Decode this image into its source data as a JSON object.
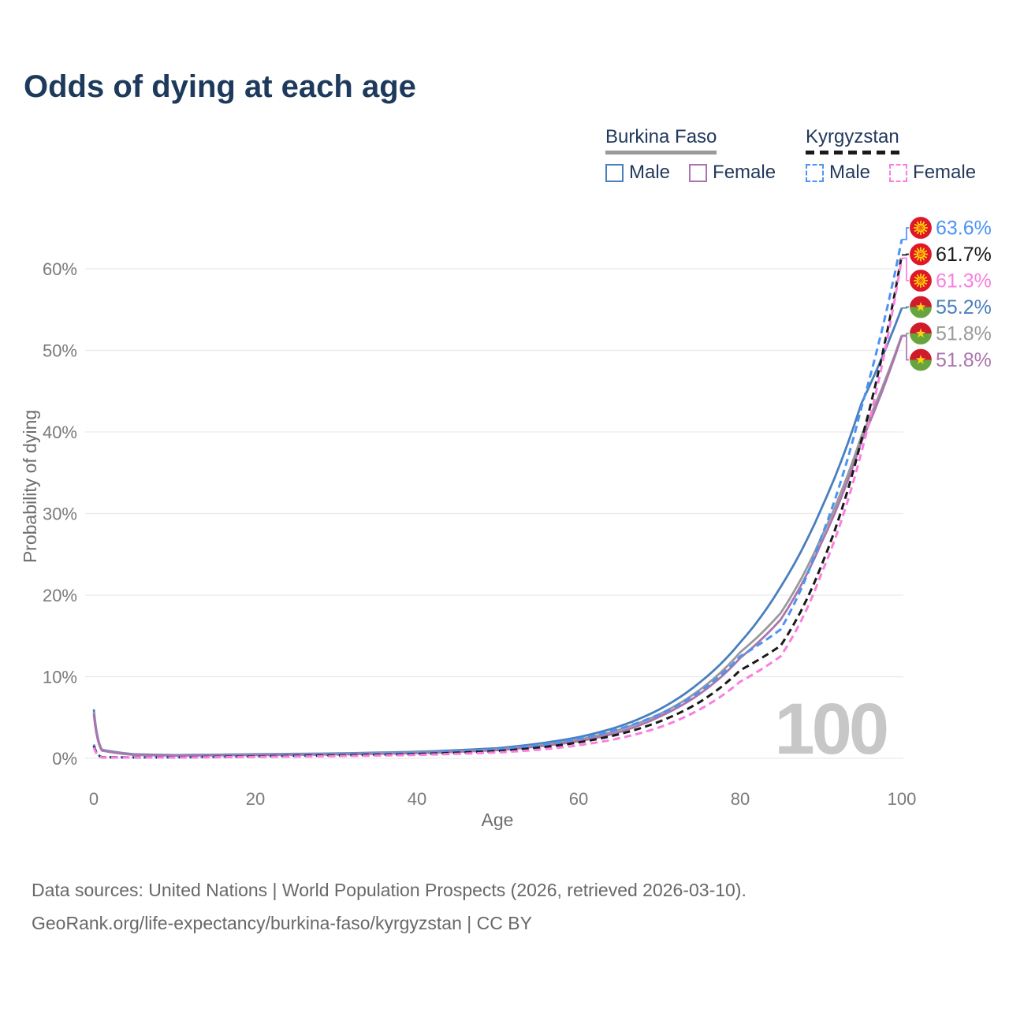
{
  "title": "Odds of dying at each age",
  "watermark": "100",
  "legend": {
    "groups": [
      {
        "label": "Burkina Faso",
        "underline": {
          "style": "solid",
          "color": "#9a9a9a"
        },
        "items": [
          {
            "label": "Male",
            "color": "#4a7ebd",
            "dashed": false
          },
          {
            "label": "Female",
            "color": "#ab74ae",
            "dashed": false
          }
        ]
      },
      {
        "label": "Kyrgyzstan",
        "underline": {
          "style": "dashed",
          "color": "#1a1a1a"
        },
        "items": [
          {
            "label": "Male",
            "color": "#4b93f5",
            "dashed": true
          },
          {
            "label": "Female",
            "color": "#f97fdf",
            "dashed": true
          }
        ]
      }
    ]
  },
  "chart_data": {
    "type": "line",
    "title": "Odds of dying at each age",
    "xlabel": "Age",
    "ylabel": "Probability of dying",
    "x_ticks": [
      0,
      20,
      40,
      60,
      80,
      100
    ],
    "y_ticks_pct": [
      0,
      10,
      20,
      30,
      40,
      50,
      60
    ],
    "xlim": [
      0,
      100
    ],
    "ylim_pct": [
      0,
      66
    ],
    "grid": "horizontal-light-gray",
    "legend_position": "top-right",
    "x": [
      0,
      1,
      5,
      10,
      20,
      30,
      40,
      50,
      55,
      60,
      65,
      70,
      75,
      80,
      85,
      90,
      95,
      100
    ],
    "series": [
      {
        "name": "Burkina Faso Male",
        "country": "Burkina Faso",
        "sex": "male",
        "color": "#4a7ebd",
        "dashed": false,
        "values_pct": [
          6.0,
          1.05,
          0.5,
          0.4,
          0.5,
          0.6,
          0.8,
          1.25,
          1.8,
          2.6,
          3.9,
          6.0,
          9.3,
          14.2,
          21.0,
          30.5,
          43.5,
          55.2
        ],
        "end_value_pct": 55.2
      },
      {
        "name": "Burkina Faso Both sexes",
        "country": "Burkina Faso",
        "sex": "both",
        "color": "#9a9a9a",
        "dashed": false,
        "values_pct": [
          5.7,
          1.0,
          0.45,
          0.36,
          0.45,
          0.54,
          0.72,
          1.1,
          1.6,
          2.3,
          3.5,
          5.4,
          8.4,
          13.0,
          17.8,
          27.0,
          39.5,
          51.85
        ],
        "end_value_pct": 51.8
      },
      {
        "name": "Burkina Faso Female",
        "country": "Burkina Faso",
        "sex": "female",
        "color": "#ab74ae",
        "dashed": false,
        "values_pct": [
          5.4,
          0.95,
          0.42,
          0.33,
          0.4,
          0.48,
          0.64,
          1.0,
          1.45,
          2.1,
          3.2,
          5.1,
          7.9,
          12.3,
          17.0,
          26.3,
          38.8,
          51.75
        ],
        "end_value_pct": 51.8
      },
      {
        "name": "Kyrgyzstan Male",
        "country": "Kyrgyzstan",
        "sex": "male",
        "color": "#4b93f5",
        "dashed": true,
        "values_pct": [
          1.7,
          0.15,
          0.12,
          0.14,
          0.3,
          0.45,
          0.65,
          1.1,
          1.6,
          2.4,
          3.6,
          5.4,
          8.2,
          12.5,
          15.8,
          27.0,
          43.0,
          63.6
        ],
        "end_value_pct": 63.6
      },
      {
        "name": "Kyrgyzstan Both sexes",
        "country": "Kyrgyzstan",
        "sex": "both",
        "color": "#1a1a1a",
        "dashed": true,
        "values_pct": [
          1.5,
          0.13,
          0.1,
          0.12,
          0.24,
          0.36,
          0.52,
          0.9,
          1.3,
          1.95,
          2.95,
          4.5,
          6.9,
          10.8,
          13.8,
          23.5,
          39.0,
          61.7
        ],
        "end_value_pct": 61.7
      },
      {
        "name": "Kyrgyzstan Female",
        "country": "Kyrgyzstan",
        "sex": "female",
        "color": "#f97fdf",
        "dashed": true,
        "values_pct": [
          1.35,
          0.11,
          0.09,
          0.1,
          0.18,
          0.27,
          0.42,
          0.72,
          1.05,
          1.6,
          2.45,
          3.8,
          6.0,
          9.4,
          12.5,
          22.5,
          37.5,
          61.3
        ],
        "end_value_pct": 61.3
      }
    ]
  },
  "end_labels": [
    {
      "text": "63.6%",
      "flag": "kyrgyzstan",
      "series_index": 3,
      "color": "#4b93f5"
    },
    {
      "text": "61.7%",
      "flag": "kyrgyzstan",
      "series_index": 4,
      "color": "#1a1a1a"
    },
    {
      "text": "61.3%",
      "flag": "kyrgyzstan",
      "series_index": 5,
      "color": "#f97fdf"
    },
    {
      "text": "55.2%",
      "flag": "burkina-faso",
      "series_index": 0,
      "color": "#4a7ebd"
    },
    {
      "text": "51.8%",
      "flag": "burkina-faso",
      "series_index": 1,
      "color": "#9a9a9a"
    },
    {
      "text": "51.8%",
      "flag": "burkina-faso",
      "series_index": 2,
      "color": "#ab74ae"
    }
  ],
  "flag_colors": {
    "kyrgyzstan": {
      "field": "#e0162b",
      "sun": "#ffd800"
    },
    "burkina_faso": {
      "top": "#cf1b2a",
      "bottom": "#67a43e",
      "star": "#fcd116"
    }
  },
  "footer": {
    "line1": "Data sources: United Nations | World Population Prospects (2026, retrieved 2026-03-10).",
    "line2": "GeoRank.org/life-expectancy/burkina-faso/kyrgyzstan | CC BY"
  }
}
